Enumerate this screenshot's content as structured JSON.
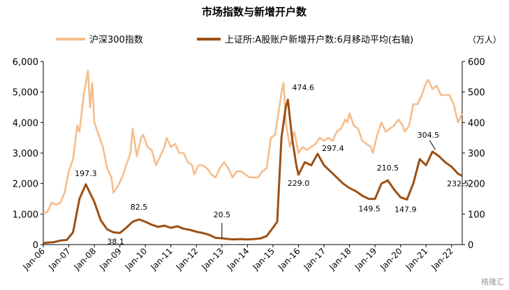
{
  "chart_data": {
    "type": "line",
    "title": "市场指数与新增开户数",
    "legend_position": "top",
    "right_axis_unit": "（万人）",
    "x_ticks": [
      "Jan-06",
      "Jan-07",
      "Jan-08",
      "Jan-09",
      "Jan-10",
      "Jan-11",
      "Jan-12",
      "Jan-13",
      "Jan-14",
      "Jan-15",
      "Jan-16",
      "Jan-17",
      "Jan-18",
      "Jan-19",
      "Jan-20",
      "Jan-21",
      "Jan-22"
    ],
    "x_range": [
      "Jan-06",
      "Jun-22"
    ],
    "y_left": {
      "range": [
        0,
        6000
      ],
      "ticks": [
        "0",
        "1,000",
        "2,000",
        "3,000",
        "4,000",
        "5,000",
        "6,000"
      ]
    },
    "y_right": {
      "range": [
        0,
        600
      ],
      "ticks": [
        "0",
        "100",
        "200",
        "300",
        "400",
        "500",
        "600"
      ]
    },
    "grid": false,
    "colors": {
      "csi300": "#f5bd8c",
      "accounts": "#9c5014"
    },
    "series": [
      {
        "name": "沪深300指数",
        "axis": "left",
        "points": [
          [
            "2006-01",
            1000
          ],
          [
            "2006-03",
            1080
          ],
          [
            "2006-05",
            1380
          ],
          [
            "2006-07",
            1300
          ],
          [
            "2006-09",
            1370
          ],
          [
            "2006-11",
            1700
          ],
          [
            "2007-01",
            2400
          ],
          [
            "2007-03",
            2800
          ],
          [
            "2007-05",
            3900
          ],
          [
            "2007-06",
            3700
          ],
          [
            "2007-08",
            4900
          ],
          [
            "2007-10",
            5700
          ],
          [
            "2007-11",
            4500
          ],
          [
            "2007-12",
            5300
          ],
          [
            "2008-01",
            4000
          ],
          [
            "2008-03",
            3600
          ],
          [
            "2008-05",
            3200
          ],
          [
            "2008-07",
            2500
          ],
          [
            "2008-09",
            2200
          ],
          [
            "2008-10",
            1700
          ],
          [
            "2008-12",
            1900
          ],
          [
            "2009-02",
            2200
          ],
          [
            "2009-04",
            2600
          ],
          [
            "2009-06",
            3000
          ],
          [
            "2009-07",
            3800
          ],
          [
            "2009-09",
            2900
          ],
          [
            "2009-11",
            3500
          ],
          [
            "2009-12",
            3600
          ],
          [
            "2010-02",
            3200
          ],
          [
            "2010-04",
            3100
          ],
          [
            "2010-06",
            2600
          ],
          [
            "2010-08",
            2900
          ],
          [
            "2010-10",
            3200
          ],
          [
            "2010-11",
            3500
          ],
          [
            "2011-01",
            3200
          ],
          [
            "2011-03",
            3300
          ],
          [
            "2011-05",
            3000
          ],
          [
            "2011-07",
            3000
          ],
          [
            "2011-09",
            2700
          ],
          [
            "2011-11",
            2600
          ],
          [
            "2011-12",
            2300
          ],
          [
            "2012-02",
            2600
          ],
          [
            "2012-04",
            2600
          ],
          [
            "2012-06",
            2500
          ],
          [
            "2012-08",
            2300
          ],
          [
            "2012-10",
            2200
          ],
          [
            "2012-12",
            2500
          ],
          [
            "2013-02",
            2700
          ],
          [
            "2013-04",
            2500
          ],
          [
            "2013-06",
            2200
          ],
          [
            "2013-08",
            2400
          ],
          [
            "2013-10",
            2400
          ],
          [
            "2013-12",
            2300
          ],
          [
            "2014-02",
            2200
          ],
          [
            "2014-04",
            2200
          ],
          [
            "2014-06",
            2200
          ],
          [
            "2014-08",
            2400
          ],
          [
            "2014-10",
            2500
          ],
          [
            "2014-12",
            3500
          ],
          [
            "2015-02",
            3600
          ],
          [
            "2015-04",
            4500
          ],
          [
            "2015-05",
            5000
          ],
          [
            "2015-06",
            5300
          ],
          [
            "2015-07",
            4000
          ],
          [
            "2015-09",
            3200
          ],
          [
            "2015-11",
            3700
          ],
          [
            "2016-01",
            3000
          ],
          [
            "2016-03",
            3200
          ],
          [
            "2016-05",
            3100
          ],
          [
            "2016-07",
            3200
          ],
          [
            "2016-09",
            3300
          ],
          [
            "2016-11",
            3500
          ],
          [
            "2017-01",
            3400
          ],
          [
            "2017-03",
            3500
          ],
          [
            "2017-05",
            3400
          ],
          [
            "2017-07",
            3700
          ],
          [
            "2017-09",
            3800
          ],
          [
            "2017-11",
            4100
          ],
          [
            "2017-12",
            4000
          ],
          [
            "2018-01",
            4300
          ],
          [
            "2018-03",
            3900
          ],
          [
            "2018-05",
            3800
          ],
          [
            "2018-07",
            3400
          ],
          [
            "2018-09",
            3300
          ],
          [
            "2018-11",
            3200
          ],
          [
            "2018-12",
            3000
          ],
          [
            "2019-02",
            3600
          ],
          [
            "2019-04",
            4000
          ],
          [
            "2019-06",
            3700
          ],
          [
            "2019-08",
            3800
          ],
          [
            "2019-10",
            3900
          ],
          [
            "2019-12",
            4100
          ],
          [
            "2020-02",
            3900
          ],
          [
            "2020-03",
            3700
          ],
          [
            "2020-05",
            3900
          ],
          [
            "2020-07",
            4600
          ],
          [
            "2020-09",
            4600
          ],
          [
            "2020-11",
            4900
          ],
          [
            "2021-01",
            5300
          ],
          [
            "2021-02",
            5400
          ],
          [
            "2021-04",
            5100
          ],
          [
            "2021-06",
            5200
          ],
          [
            "2021-08",
            4900
          ],
          [
            "2021-10",
            4900
          ],
          [
            "2021-12",
            4900
          ],
          [
            "2022-02",
            4600
          ],
          [
            "2022-04",
            4000
          ],
          [
            "2022-06",
            4300
          ]
        ]
      },
      {
        "name": "上证所:A股账户新增开户数:6月移动平均(右轴)",
        "axis": "right",
        "points": [
          [
            "2006-01",
            5
          ],
          [
            "2006-06",
            8
          ],
          [
            "2006-09",
            13
          ],
          [
            "2006-12",
            15
          ],
          [
            "2007-03",
            40
          ],
          [
            "2007-06",
            150
          ],
          [
            "2007-09",
            197.3
          ],
          [
            "2008-01",
            140
          ],
          [
            "2008-04",
            80
          ],
          [
            "2008-07",
            50
          ],
          [
            "2008-10",
            40
          ],
          [
            "2009-01",
            38.1
          ],
          [
            "2009-04",
            55
          ],
          [
            "2009-07",
            75
          ],
          [
            "2009-10",
            82.5
          ],
          [
            "2010-01",
            75
          ],
          [
            "2010-04",
            65
          ],
          [
            "2010-07",
            58
          ],
          [
            "2010-10",
            62
          ],
          [
            "2011-01",
            55
          ],
          [
            "2011-04",
            60
          ],
          [
            "2011-07",
            52
          ],
          [
            "2011-10",
            48
          ],
          [
            "2012-01",
            42
          ],
          [
            "2012-04",
            38
          ],
          [
            "2012-07",
            32
          ],
          [
            "2012-10",
            22
          ],
          [
            "2013-01",
            20.5
          ],
          [
            "2013-04",
            18
          ],
          [
            "2013-07",
            17
          ],
          [
            "2013-10",
            18
          ],
          [
            "2014-01",
            17
          ],
          [
            "2014-04",
            18
          ],
          [
            "2014-07",
            20
          ],
          [
            "2014-10",
            28
          ],
          [
            "2015-01",
            55
          ],
          [
            "2015-03",
            75
          ],
          [
            "2015-05",
            350
          ],
          [
            "2015-07",
            450
          ],
          [
            "2015-08",
            474.6
          ],
          [
            "2015-10",
            350
          ],
          [
            "2015-12",
            260
          ],
          [
            "2016-01",
            229
          ],
          [
            "2016-04",
            270
          ],
          [
            "2016-07",
            260
          ],
          [
            "2016-10",
            297.4
          ],
          [
            "2017-01",
            260
          ],
          [
            "2017-04",
            240
          ],
          [
            "2017-07",
            220
          ],
          [
            "2017-10",
            200
          ],
          [
            "2018-01",
            185
          ],
          [
            "2018-04",
            175
          ],
          [
            "2018-07",
            160
          ],
          [
            "2018-10",
            150
          ],
          [
            "2019-01",
            149.5
          ],
          [
            "2019-04",
            200
          ],
          [
            "2019-07",
            210.5
          ],
          [
            "2019-10",
            180
          ],
          [
            "2020-01",
            155
          ],
          [
            "2020-04",
            147.9
          ],
          [
            "2020-07",
            200
          ],
          [
            "2020-10",
            280
          ],
          [
            "2021-01",
            260
          ],
          [
            "2021-04",
            304.5
          ],
          [
            "2021-07",
            290
          ],
          [
            "2021-10",
            270
          ],
          [
            "2022-01",
            255
          ],
          [
            "2022-04",
            232.5
          ],
          [
            "2022-06",
            225
          ]
        ]
      }
    ],
    "annotations": [
      {
        "text": "197.3",
        "date": "2007-09",
        "value": 197.3,
        "axis": "right"
      },
      {
        "text": "38.1",
        "date": "2009-01",
        "value": 38.1,
        "axis": "right"
      },
      {
        "text": "82.5",
        "date": "2009-10",
        "value": 82.5,
        "axis": "right"
      },
      {
        "text": "20.5",
        "date": "2013-01",
        "value": 20.5,
        "axis": "right"
      },
      {
        "text": "474.6",
        "date": "2015-08",
        "value": 474.6,
        "axis": "right"
      },
      {
        "text": "229.0",
        "date": "2016-01",
        "value": 229.0,
        "axis": "right"
      },
      {
        "text": "297.4",
        "date": "2016-10",
        "value": 297.4,
        "axis": "right"
      },
      {
        "text": "149.5",
        "date": "2019-01",
        "value": 149.5,
        "axis": "right"
      },
      {
        "text": "210.5",
        "date": "2019-07",
        "value": 210.5,
        "axis": "right"
      },
      {
        "text": "147.9",
        "date": "2020-04",
        "value": 147.9,
        "axis": "right"
      },
      {
        "text": "304.5",
        "date": "2021-04",
        "value": 304.5,
        "axis": "right"
      },
      {
        "text": "232.5",
        "date": "2022-04",
        "value": 232.5,
        "axis": "right"
      }
    ]
  },
  "watermark": "格隆汇"
}
